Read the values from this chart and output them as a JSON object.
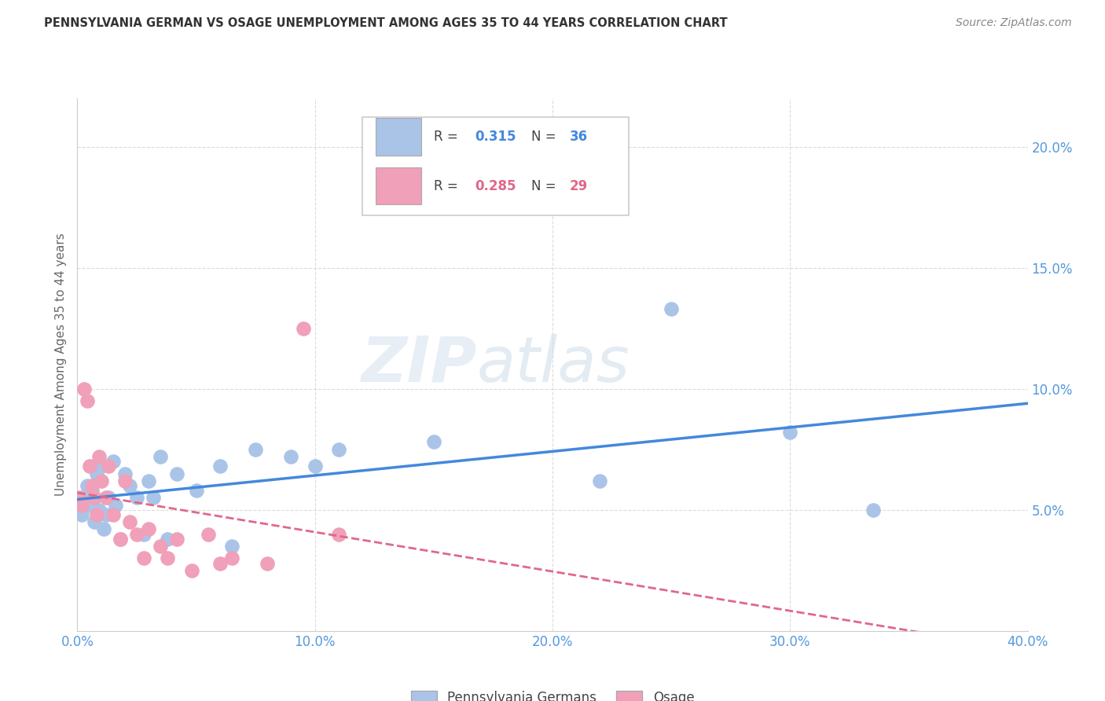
{
  "title": "PENNSYLVANIA GERMAN VS OSAGE UNEMPLOYMENT AMONG AGES 35 TO 44 YEARS CORRELATION CHART",
  "source": "Source: ZipAtlas.com",
  "ylabel": "Unemployment Among Ages 35 to 44 years",
  "xlim": [
    0.0,
    0.4
  ],
  "ylim": [
    0.0,
    0.22
  ],
  "xticks": [
    0.0,
    0.1,
    0.2,
    0.3,
    0.4
  ],
  "xtick_labels": [
    "0.0%",
    "10.0%",
    "20.0%",
    "30.0%",
    "40.0%"
  ],
  "yticks": [
    0.05,
    0.1,
    0.15,
    0.2
  ],
  "ytick_labels": [
    "5.0%",
    "10.0%",
    "15.0%",
    "20.0%"
  ],
  "blue_R": "0.315",
  "blue_N": "36",
  "pink_R": "0.285",
  "pink_N": "29",
  "blue_color": "#aac4e8",
  "pink_color": "#f0a0b8",
  "blue_line_color": "#4488dd",
  "pink_line_color": "#e06888",
  "blue_line_dashed": false,
  "pink_line_dashed": true,
  "watermark_zip": "ZIP",
  "watermark_atlas": "atlas",
  "blue_scatter_x": [
    0.002,
    0.003,
    0.004,
    0.005,
    0.006,
    0.007,
    0.008,
    0.009,
    0.01,
    0.011,
    0.012,
    0.013,
    0.015,
    0.016,
    0.018,
    0.02,
    0.022,
    0.025,
    0.028,
    0.03,
    0.032,
    0.035,
    0.038,
    0.042,
    0.05,
    0.06,
    0.065,
    0.075,
    0.09,
    0.1,
    0.11,
    0.15,
    0.22,
    0.25,
    0.3,
    0.335
  ],
  "blue_scatter_y": [
    0.048,
    0.055,
    0.06,
    0.052,
    0.058,
    0.045,
    0.065,
    0.05,
    0.068,
    0.042,
    0.048,
    0.055,
    0.07,
    0.052,
    0.038,
    0.065,
    0.06,
    0.055,
    0.04,
    0.062,
    0.055,
    0.072,
    0.038,
    0.065,
    0.058,
    0.068,
    0.035,
    0.075,
    0.072,
    0.068,
    0.075,
    0.078,
    0.062,
    0.133,
    0.082,
    0.05
  ],
  "pink_scatter_x": [
    0.001,
    0.002,
    0.003,
    0.004,
    0.005,
    0.006,
    0.007,
    0.008,
    0.009,
    0.01,
    0.012,
    0.013,
    0.015,
    0.018,
    0.02,
    0.022,
    0.025,
    0.028,
    0.03,
    0.035,
    0.038,
    0.042,
    0.048,
    0.055,
    0.06,
    0.065,
    0.08,
    0.095,
    0.11
  ],
  "pink_scatter_y": [
    0.055,
    0.052,
    0.1,
    0.095,
    0.068,
    0.06,
    0.055,
    0.048,
    0.072,
    0.062,
    0.055,
    0.068,
    0.048,
    0.038,
    0.062,
    0.045,
    0.04,
    0.03,
    0.042,
    0.035,
    0.03,
    0.038,
    0.025,
    0.04,
    0.028,
    0.03,
    0.028,
    0.125,
    0.04
  ],
  "background_color": "#ffffff",
  "grid_color": "#cccccc",
  "title_color": "#333333",
  "source_color": "#888888",
  "axis_tick_color": "#5599dd",
  "ylabel_color": "#666666"
}
